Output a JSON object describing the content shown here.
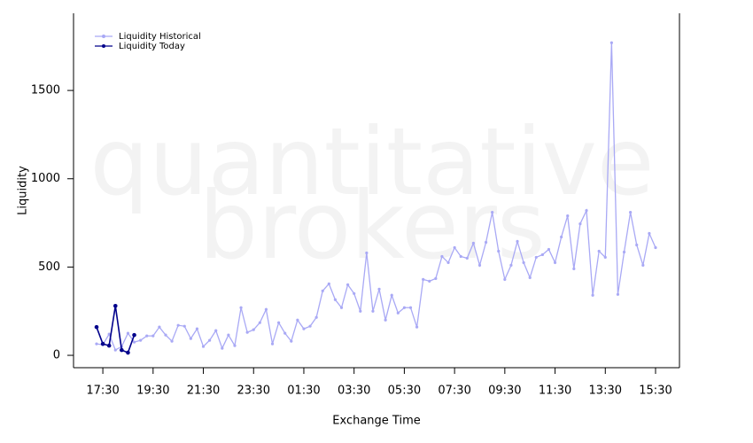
{
  "chart_data": {
    "type": "line",
    "xlabel": "Exchange Time",
    "ylabel": "Liquidity",
    "watermark": [
      "quantitative",
      "brokers"
    ],
    "categories": [
      null,
      "17:30",
      null,
      null,
      null,
      null,
      null,
      null,
      null,
      "19:30",
      null,
      null,
      null,
      null,
      null,
      null,
      null,
      "21:30",
      null,
      null,
      null,
      null,
      null,
      null,
      null,
      "23:30",
      null,
      null,
      null,
      null,
      null,
      null,
      null,
      "01:30",
      null,
      null,
      null,
      null,
      null,
      null,
      null,
      "03:30",
      null,
      null,
      null,
      null,
      null,
      null,
      null,
      "05:30",
      null,
      null,
      null,
      null,
      null,
      null,
      null,
      "07:30",
      null,
      null,
      null,
      null,
      null,
      null,
      null,
      "09:30",
      null,
      null,
      null,
      null,
      null,
      null,
      null,
      "11:30",
      null,
      null,
      null,
      null,
      null,
      null,
      null,
      "13:30",
      null,
      null,
      null,
      null,
      null,
      null,
      null,
      "15:30"
    ],
    "series": [
      {
        "name": "Liquidity Historical",
        "color": "#a9a9f5",
        "values": [
          65,
          60,
          120,
          30,
          50,
          125,
          75,
          85,
          110,
          110,
          160,
          115,
          80,
          170,
          165,
          95,
          150,
          50,
          85,
          140,
          40,
          115,
          55,
          270,
          130,
          145,
          185,
          260,
          65,
          185,
          125,
          80,
          200,
          150,
          165,
          215,
          365,
          405,
          315,
          270,
          400,
          350,
          250,
          580,
          250,
          375,
          200,
          340,
          240,
          270,
          270,
          160,
          430,
          420,
          435,
          560,
          525,
          610,
          560,
          550,
          635,
          510,
          640,
          810,
          590,
          430,
          510,
          645,
          525,
          440,
          555,
          570,
          600,
          525,
          670,
          790,
          490,
          745,
          820,
          340,
          590,
          555,
          1770,
          345,
          585,
          810,
          625,
          510,
          690,
          610
        ]
      },
      {
        "name": "Liquidity Today",
        "color": "#00008b",
        "values": [
          160,
          65,
          55,
          280,
          30,
          15,
          115,
          null,
          null,
          null,
          null,
          null,
          null,
          null,
          null,
          null,
          null,
          null,
          null,
          null,
          null,
          null,
          null,
          null,
          null,
          null,
          null,
          null,
          null,
          null,
          null,
          null,
          null,
          null,
          null,
          null,
          null,
          null,
          null,
          null,
          null,
          null,
          null,
          null,
          null,
          null,
          null,
          null,
          null,
          null,
          null,
          null,
          null,
          null,
          null,
          null,
          null,
          null,
          null,
          null,
          null,
          null,
          null,
          null,
          null,
          null,
          null,
          null,
          null,
          null,
          null,
          null,
          null,
          null,
          null,
          null,
          null,
          null,
          null,
          null,
          null,
          null,
          null,
          null,
          null,
          null,
          null,
          null,
          null,
          null
        ]
      }
    ],
    "ylim": [
      -70,
      1937
    ],
    "yticks": [
      0,
      500,
      1000,
      1500
    ],
    "legend": "upper left"
  }
}
